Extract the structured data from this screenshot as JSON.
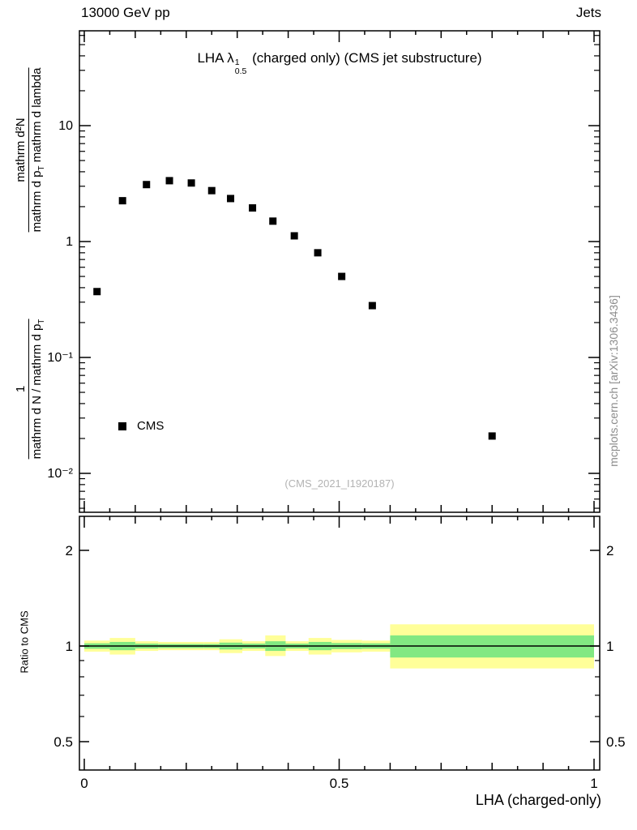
{
  "header": {
    "left": "13000 GeV pp",
    "right": "Jets"
  },
  "title": {
    "pre": "LHA λ",
    "sup": "1",
    "sub": "0.5",
    "post": " (charged only) (CMS jet substructure)"
  },
  "watermarks": {
    "center": "(CMS_2021_I1920187)",
    "right": "mcplots.cern.ch [arXiv:1306.3436]"
  },
  "axis_labels": {
    "x": "LHA (charged-only)",
    "ratio_y": "Ratio to CMS",
    "y_upper_frac": {
      "num": "mathrm d²N",
      "den_main": "mathrm d p",
      "den_sub": "T",
      "den_tail": " mathrm d lambda"
    },
    "y_lower_frac": {
      "num": "1",
      "den_main": "mathrm d N / mathrm d p",
      "den_sub": "T"
    }
  },
  "legend": {
    "label": "CMS",
    "marker_color": "#000000"
  },
  "colors": {
    "band_outer": "#ffff99",
    "band_inner": "#82e882",
    "marker": "#000000",
    "frame": "#000000",
    "watermark": "#8c8c8c"
  },
  "chart_data": [
    {
      "type": "scatter",
      "title": "LHA lambda^1_0.5 (charged only) (CMS jet substructure)",
      "xlabel": "LHA (charged-only)",
      "ylabel": "1/(mathrm d N/mathrm d p_T) mathrm d²N/(mathrm d p_T mathrm d lambda)",
      "xscale": "linear",
      "yscale": "log",
      "xlim": [
        -0.01,
        1.011
      ],
      "ylim": [
        0.0046,
        65
      ],
      "x_ticks": [
        {
          "v": 0,
          "label": "0"
        },
        {
          "v": 0.5,
          "label": "0.5"
        },
        {
          "v": 1,
          "label": "1"
        }
      ],
      "y_ticks": [
        {
          "v": 10,
          "label": "10"
        },
        {
          "v": 1,
          "label": "1"
        },
        {
          "v": 0.1,
          "label": "10⁻¹"
        },
        {
          "v": 0.01,
          "label": "10⁻²"
        }
      ],
      "grid": false,
      "legend_position": "left-middle",
      "series": [
        {
          "name": "CMS",
          "marker": "square",
          "color": "#000000",
          "points": [
            [
              0.025,
              0.37
            ],
            [
              0.075,
              2.25
            ],
            [
              0.122,
              3.1
            ],
            [
              0.167,
              3.35
            ],
            [
              0.21,
              3.2
            ],
            [
              0.25,
              2.75
            ],
            [
              0.287,
              2.35
            ],
            [
              0.33,
              1.95
            ],
            [
              0.37,
              1.5
            ],
            [
              0.412,
              1.12
            ],
            [
              0.458,
              0.8
            ],
            [
              0.505,
              0.5
            ],
            [
              0.565,
              0.28
            ],
            [
              0.8,
              0.021
            ]
          ]
        }
      ]
    },
    {
      "type": "band",
      "ylabel": "Ratio to CMS",
      "yscale": "log",
      "ylim": [
        0.41,
        2.56
      ],
      "y_ticks": [
        {
          "v": 0.5,
          "label": "0.5"
        },
        {
          "v": 1,
          "label": "1"
        },
        {
          "v": 2,
          "label": "2"
        }
      ],
      "reference_line": 1,
      "bands": [
        {
          "x0": 0.0,
          "x1": 0.05,
          "outer": [
            0.96,
            1.04
          ],
          "inner": [
            0.98,
            1.02
          ]
        },
        {
          "x0": 0.05,
          "x1": 0.1,
          "outer": [
            0.94,
            1.06
          ],
          "inner": [
            0.97,
            1.03
          ]
        },
        {
          "x0": 0.1,
          "x1": 0.145,
          "outer": [
            0.965,
            1.035
          ],
          "inner": [
            0.982,
            1.018
          ]
        },
        {
          "x0": 0.145,
          "x1": 0.19,
          "outer": [
            0.97,
            1.03
          ],
          "inner": [
            0.985,
            1.015
          ]
        },
        {
          "x0": 0.19,
          "x1": 0.235,
          "outer": [
            0.97,
            1.03
          ],
          "inner": [
            0.985,
            1.015
          ]
        },
        {
          "x0": 0.235,
          "x1": 0.265,
          "outer": [
            0.97,
            1.03
          ],
          "inner": [
            0.985,
            1.015
          ]
        },
        {
          "x0": 0.265,
          "x1": 0.31,
          "outer": [
            0.95,
            1.05
          ],
          "inner": [
            0.975,
            1.025
          ]
        },
        {
          "x0": 0.31,
          "x1": 0.355,
          "outer": [
            0.965,
            1.035
          ],
          "inner": [
            0.982,
            1.018
          ]
        },
        {
          "x0": 0.355,
          "x1": 0.395,
          "outer": [
            0.93,
            1.08
          ],
          "inner": [
            0.965,
            1.035
          ]
        },
        {
          "x0": 0.395,
          "x1": 0.44,
          "outer": [
            0.965,
            1.035
          ],
          "inner": [
            0.982,
            1.018
          ]
        },
        {
          "x0": 0.44,
          "x1": 0.485,
          "outer": [
            0.94,
            1.06
          ],
          "inner": [
            0.97,
            1.03
          ]
        },
        {
          "x0": 0.485,
          "x1": 0.545,
          "outer": [
            0.955,
            1.045
          ],
          "inner": [
            0.978,
            1.022
          ]
        },
        {
          "x0": 0.545,
          "x1": 0.6,
          "outer": [
            0.96,
            1.04
          ],
          "inner": [
            0.98,
            1.02
          ]
        },
        {
          "x0": 0.6,
          "x1": 1.0,
          "outer": [
            0.85,
            1.17
          ],
          "inner": [
            0.92,
            1.08
          ]
        }
      ]
    }
  ]
}
